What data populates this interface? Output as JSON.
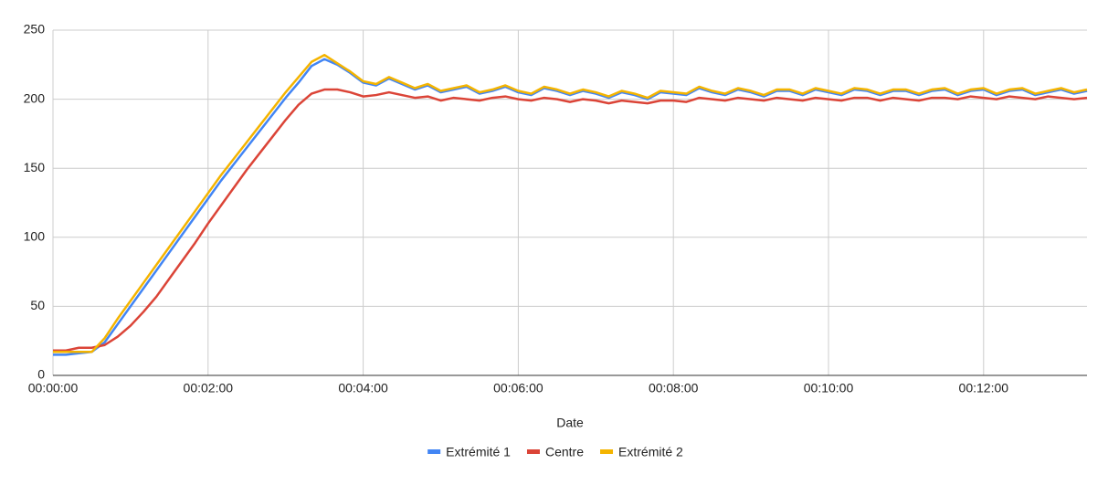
{
  "chart_data": {
    "type": "line",
    "x_label": "Date",
    "x": [
      0,
      10,
      20,
      30,
      40,
      50,
      60,
      70,
      80,
      90,
      100,
      110,
      120,
      130,
      140,
      150,
      160,
      170,
      180,
      190,
      200,
      210,
      220,
      230,
      240,
      250,
      260,
      270,
      280,
      290,
      300,
      310,
      320,
      330,
      340,
      350,
      360,
      370,
      380,
      390,
      400,
      410,
      420,
      430,
      440,
      450,
      460,
      470,
      480,
      490,
      500,
      510,
      520,
      530,
      540,
      550,
      560,
      570,
      580,
      590,
      600,
      610,
      620,
      630,
      640,
      650,
      660,
      670,
      680,
      690,
      700,
      710,
      720,
      730,
      740,
      750,
      760,
      770,
      780,
      790,
      800
    ],
    "series": [
      {
        "name": "Extrémité 1",
        "color": "#4285f4",
        "values": [
          15,
          15,
          16,
          17,
          24,
          37,
          50,
          63,
          76,
          89,
          102,
          115,
          128,
          141,
          153,
          165,
          177,
          189,
          201,
          212,
          224,
          229,
          225,
          219,
          212,
          210,
          215,
          211,
          207,
          210,
          205,
          207,
          209,
          204,
          206,
          209,
          205,
          203,
          208,
          206,
          203,
          206,
          204,
          201,
          205,
          203,
          200,
          205,
          204,
          203,
          208,
          205,
          203,
          207,
          205,
          202,
          206,
          206,
          203,
          207,
          205,
          203,
          207,
          206,
          203,
          206,
          206,
          203,
          206,
          207,
          203,
          206,
          207,
          203,
          206,
          207,
          203,
          205,
          207,
          204,
          206
        ]
      },
      {
        "name": "Centre",
        "color": "#db4437",
        "values": [
          18,
          18,
          20,
          20,
          22,
          28,
          36,
          46,
          57,
          70,
          83,
          96,
          110,
          123,
          136,
          149,
          161,
          173,
          185,
          196,
          204,
          207,
          207,
          205,
          202,
          203,
          205,
          203,
          201,
          202,
          199,
          201,
          200,
          199,
          201,
          202,
          200,
          199,
          201,
          200,
          198,
          200,
          199,
          197,
          199,
          198,
          197,
          199,
          199,
          198,
          201,
          200,
          199,
          201,
          200,
          199,
          201,
          200,
          199,
          201,
          200,
          199,
          201,
          201,
          199,
          201,
          200,
          199,
          201,
          201,
          200,
          202,
          201,
          200,
          202,
          201,
          200,
          202,
          201,
          200,
          201
        ]
      },
      {
        "name": "Extrémité 2",
        "color": "#f4b400",
        "values": [
          17,
          17,
          17,
          17,
          27,
          41,
          54,
          67,
          80,
          93,
          106,
          119,
          132,
          145,
          157,
          169,
          181,
          193,
          205,
          216,
          227,
          232,
          226,
          220,
          213,
          211,
          216,
          212,
          208,
          211,
          206,
          208,
          210,
          205,
          207,
          210,
          206,
          204,
          209,
          207,
          204,
          207,
          205,
          202,
          206,
          204,
          201,
          206,
          205,
          204,
          209,
          206,
          204,
          208,
          206,
          203,
          207,
          207,
          204,
          208,
          206,
          204,
          208,
          207,
          204,
          207,
          207,
          204,
          207,
          208,
          204,
          207,
          208,
          204,
          207,
          208,
          204,
          206,
          208,
          205,
          207
        ]
      }
    ],
    "xlim": [
      0,
      800
    ],
    "xticks": [
      {
        "value": 0,
        "label": "00:00:00"
      },
      {
        "value": 120,
        "label": "00:02:00"
      },
      {
        "value": 240,
        "label": "00:04:00"
      },
      {
        "value": 360,
        "label": "00:06:00"
      },
      {
        "value": 480,
        "label": "00:08:00"
      },
      {
        "value": 600,
        "label": "00:10:00"
      },
      {
        "value": 720,
        "label": "00:12:00"
      }
    ],
    "ylim": [
      0,
      250
    ],
    "yticks": [
      0,
      50,
      100,
      150,
      200,
      250
    ],
    "grid": true,
    "legend": "bottom"
  }
}
